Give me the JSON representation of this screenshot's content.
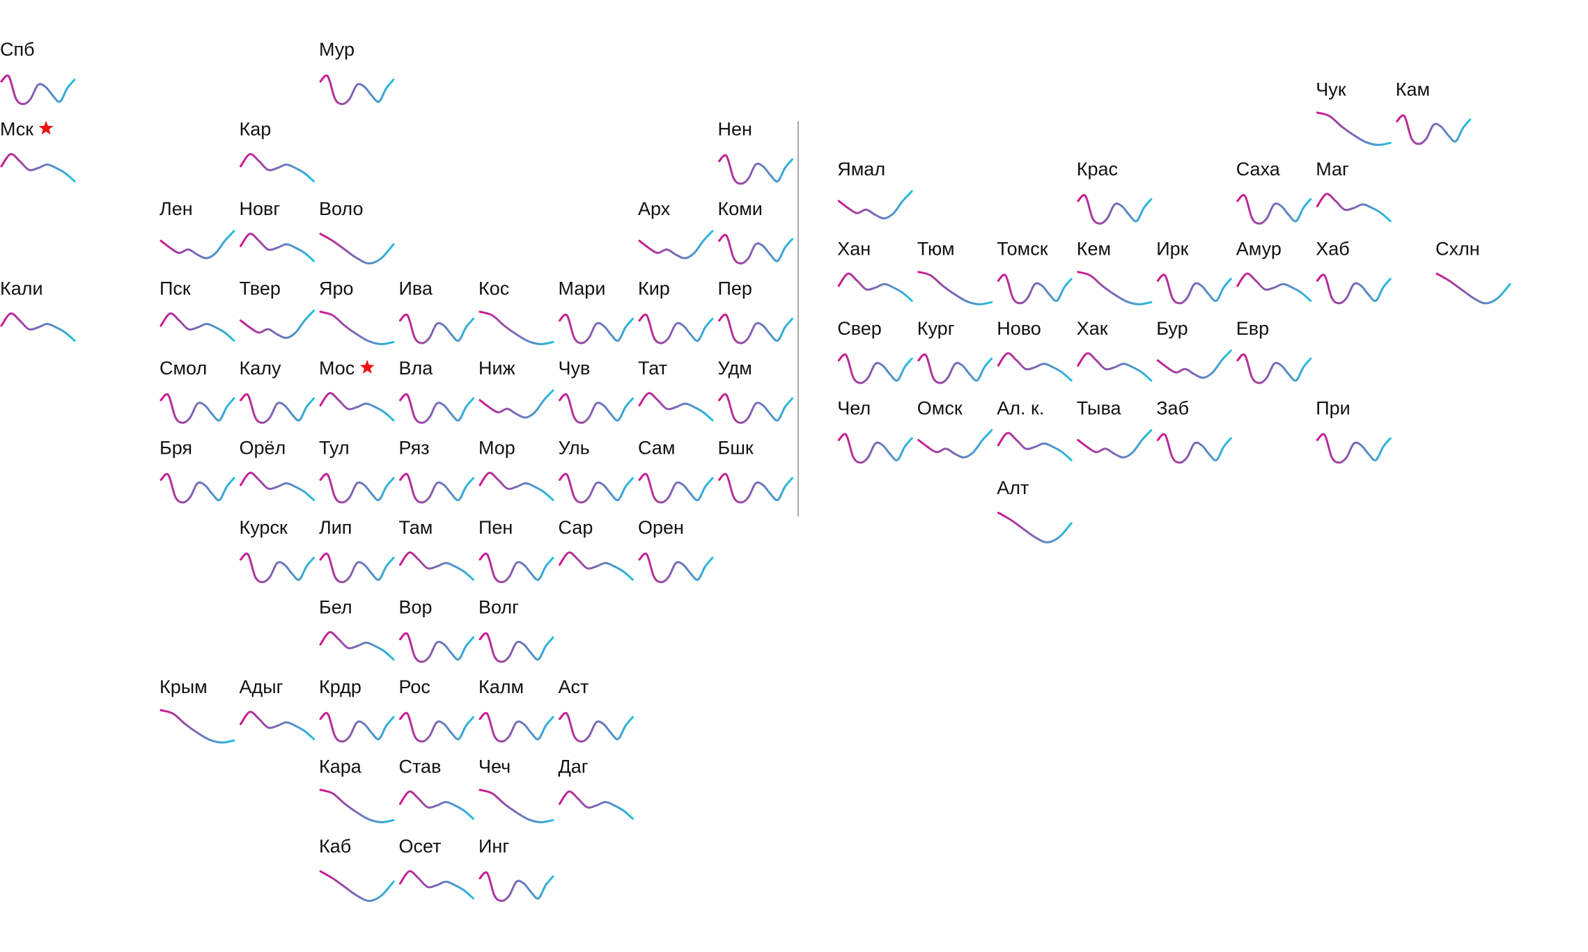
{
  "chart_data": {
    "type": "line",
    "title": "",
    "xlabel": "",
    "ylabel": "",
    "grid": false,
    "legend": "none",
    "colors": {
      "start": "#d0148c",
      "end": "#20c0e0",
      "star": "#ee1111",
      "divider": "#aaaaaa"
    },
    "shape_values": {
      "A": [
        0.7,
        0.85,
        0.2,
        0.05,
        0.2,
        0.6,
        0.55,
        0.3,
        0.12,
        0.5,
        0.75
      ],
      "B": [
        0.55,
        0.9,
        0.7,
        0.45,
        0.5,
        0.6,
        0.5,
        0.35,
        0.12
      ],
      "C": [
        0.9,
        0.7,
        0.45,
        0.2,
        0.05,
        0.2,
        0.6
      ],
      "D": [
        0.7,
        0.5,
        0.35,
        0.45,
        0.3,
        0.2,
        0.35,
        0.7,
        0.98
      ],
      "E": [
        0.8,
        0.65,
        0.25,
        0.1,
        0.25,
        0.6,
        0.45,
        0.55,
        0.75
      ],
      "F": [
        0.95,
        0.85,
        0.55,
        0.3,
        0.1,
        0.02,
        0.08
      ]
    },
    "regions": [
      {
        "label": "Спб",
        "col": 0,
        "row": 0,
        "shape": "A"
      },
      {
        "label": "Мур",
        "col": 4,
        "row": 0,
        "shape": "A"
      },
      {
        "label": "Чук",
        "col": 16.5,
        "row": 0.5,
        "shape": "F"
      },
      {
        "label": "Кам",
        "col": 17.5,
        "row": 0.5,
        "shape": "A"
      },
      {
        "label": "Мск",
        "col": 0,
        "row": 1,
        "shape": "B",
        "capital": true
      },
      {
        "label": "Кар",
        "col": 3,
        "row": 1,
        "shape": "B"
      },
      {
        "label": "Нен",
        "col": 9,
        "row": 1,
        "shape": "A"
      },
      {
        "label": "Ямал",
        "col": 10.5,
        "row": 1.5,
        "shape": "D"
      },
      {
        "label": "Крас",
        "col": 13.5,
        "row": 1.5,
        "shape": "A"
      },
      {
        "label": "Саха",
        "col": 15.5,
        "row": 1.5,
        "shape": "A"
      },
      {
        "label": "Маг",
        "col": 16.5,
        "row": 1.5,
        "shape": "B"
      },
      {
        "label": "Лен",
        "col": 2,
        "row": 2,
        "shape": "D"
      },
      {
        "label": "Новг",
        "col": 3,
        "row": 2,
        "shape": "B"
      },
      {
        "label": "Воло",
        "col": 4,
        "row": 2,
        "shape": "C"
      },
      {
        "label": "Арх",
        "col": 8,
        "row": 2,
        "shape": "D"
      },
      {
        "label": "Коми",
        "col": 9,
        "row": 2,
        "shape": "A"
      },
      {
        "label": "Хан",
        "col": 10.5,
        "row": 2.5,
        "shape": "B"
      },
      {
        "label": "Тюм",
        "col": 11.5,
        "row": 2.5,
        "shape": "F"
      },
      {
        "label": "Томск",
        "col": 12.5,
        "row": 2.5,
        "shape": "A"
      },
      {
        "label": "Кем",
        "col": 13.5,
        "row": 2.5,
        "shape": "F"
      },
      {
        "label": "Ирк",
        "col": 14.5,
        "row": 2.5,
        "shape": "A"
      },
      {
        "label": "Амур",
        "col": 15.5,
        "row": 2.5,
        "shape": "B"
      },
      {
        "label": "Хаб",
        "col": 16.5,
        "row": 2.5,
        "shape": "A"
      },
      {
        "label": "Схлн",
        "col": 18,
        "row": 2.5,
        "shape": "C"
      },
      {
        "label": "Кали",
        "col": 0,
        "row": 3,
        "shape": "B"
      },
      {
        "label": "Пск",
        "col": 2,
        "row": 3,
        "shape": "B"
      },
      {
        "label": "Твер",
        "col": 3,
        "row": 3,
        "shape": "D"
      },
      {
        "label": "Яро",
        "col": 4,
        "row": 3,
        "shape": "F"
      },
      {
        "label": "Ива",
        "col": 5,
        "row": 3,
        "shape": "A"
      },
      {
        "label": "Кос",
        "col": 6,
        "row": 3,
        "shape": "F"
      },
      {
        "label": "Мари",
        "col": 7,
        "row": 3,
        "shape": "A"
      },
      {
        "label": "Кир",
        "col": 8,
        "row": 3,
        "shape": "A"
      },
      {
        "label": "Пер",
        "col": 9,
        "row": 3,
        "shape": "A"
      },
      {
        "label": "Свер",
        "col": 10.5,
        "row": 3.5,
        "shape": "A"
      },
      {
        "label": "Кург",
        "col": 11.5,
        "row": 3.5,
        "shape": "A"
      },
      {
        "label": "Ново",
        "col": 12.5,
        "row": 3.5,
        "shape": "B"
      },
      {
        "label": "Хак",
        "col": 13.5,
        "row": 3.5,
        "shape": "B"
      },
      {
        "label": "Бур",
        "col": 14.5,
        "row": 3.5,
        "shape": "D"
      },
      {
        "label": "Евр",
        "col": 15.5,
        "row": 3.5,
        "shape": "A"
      },
      {
        "label": "Смол",
        "col": 2,
        "row": 4,
        "shape": "A"
      },
      {
        "label": "Калу",
        "col": 3,
        "row": 4,
        "shape": "A"
      },
      {
        "label": "Мос",
        "col": 4,
        "row": 4,
        "shape": "B",
        "capital": true
      },
      {
        "label": "Вла",
        "col": 5,
        "row": 4,
        "shape": "A"
      },
      {
        "label": "Ниж",
        "col": 6,
        "row": 4,
        "shape": "D"
      },
      {
        "label": "Чув",
        "col": 7,
        "row": 4,
        "shape": "A"
      },
      {
        "label": "Тат",
        "col": 8,
        "row": 4,
        "shape": "B"
      },
      {
        "label": "Удм",
        "col": 9,
        "row": 4,
        "shape": "A"
      },
      {
        "label": "Чел",
        "col": 10.5,
        "row": 4.5,
        "shape": "A"
      },
      {
        "label": "Омск",
        "col": 11.5,
        "row": 4.5,
        "shape": "D"
      },
      {
        "label": "Ал. к.",
        "col": 12.5,
        "row": 4.5,
        "shape": "B"
      },
      {
        "label": "Тыва",
        "col": 13.5,
        "row": 4.5,
        "shape": "D"
      },
      {
        "label": "Заб",
        "col": 14.5,
        "row": 4.5,
        "shape": "A"
      },
      {
        "label": "При",
        "col": 16.5,
        "row": 4.5,
        "shape": "A"
      },
      {
        "label": "Бря",
        "col": 2,
        "row": 5,
        "shape": "A"
      },
      {
        "label": "Орёл",
        "col": 3,
        "row": 5,
        "shape": "B"
      },
      {
        "label": "Тул",
        "col": 4,
        "row": 5,
        "shape": "A"
      },
      {
        "label": "Ряз",
        "col": 5,
        "row": 5,
        "shape": "A"
      },
      {
        "label": "Мор",
        "col": 6,
        "row": 5,
        "shape": "B"
      },
      {
        "label": "Уль",
        "col": 7,
        "row": 5,
        "shape": "A"
      },
      {
        "label": "Сам",
        "col": 8,
        "row": 5,
        "shape": "A"
      },
      {
        "label": "Бшк",
        "col": 9,
        "row": 5,
        "shape": "A"
      },
      {
        "label": "Алт",
        "col": 12.5,
        "row": 5.5,
        "shape": "C"
      },
      {
        "label": "Курск",
        "col": 3,
        "row": 6,
        "shape": "A"
      },
      {
        "label": "Лип",
        "col": 4,
        "row": 6,
        "shape": "A"
      },
      {
        "label": "Там",
        "col": 5,
        "row": 6,
        "shape": "B"
      },
      {
        "label": "Пен",
        "col": 6,
        "row": 6,
        "shape": "A"
      },
      {
        "label": "Сар",
        "col": 7,
        "row": 6,
        "shape": "B"
      },
      {
        "label": "Орен",
        "col": 8,
        "row": 6,
        "shape": "A"
      },
      {
        "label": "Бел",
        "col": 4,
        "row": 7,
        "shape": "B"
      },
      {
        "label": "Вор",
        "col": 5,
        "row": 7,
        "shape": "A"
      },
      {
        "label": "Волг",
        "col": 6,
        "row": 7,
        "shape": "A"
      },
      {
        "label": "Крым",
        "col": 2,
        "row": 8,
        "shape": "F"
      },
      {
        "label": "Адыг",
        "col": 3,
        "row": 8,
        "shape": "B"
      },
      {
        "label": "Крдр",
        "col": 4,
        "row": 8,
        "shape": "A"
      },
      {
        "label": "Рос",
        "col": 5,
        "row": 8,
        "shape": "A"
      },
      {
        "label": "Калм",
        "col": 6,
        "row": 8,
        "shape": "A"
      },
      {
        "label": "Аст",
        "col": 7,
        "row": 8,
        "shape": "A"
      },
      {
        "label": "Кара",
        "col": 4,
        "row": 9,
        "shape": "F"
      },
      {
        "label": "Став",
        "col": 5,
        "row": 9,
        "shape": "B"
      },
      {
        "label": "Чеч",
        "col": 6,
        "row": 9,
        "shape": "F"
      },
      {
        "label": "Даг",
        "col": 7,
        "row": 9,
        "shape": "B"
      },
      {
        "label": "Каб",
        "col": 4,
        "row": 10,
        "shape": "C"
      },
      {
        "label": "Осет",
        "col": 5,
        "row": 10,
        "shape": "B"
      },
      {
        "label": "Инг",
        "col": 6,
        "row": 10,
        "shape": "A"
      }
    ]
  }
}
